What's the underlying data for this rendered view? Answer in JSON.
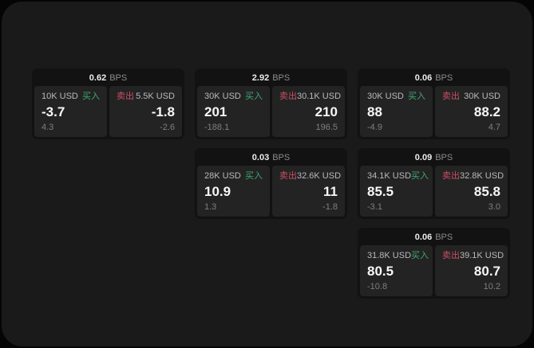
{
  "labels": {
    "bps_unit": "BPS",
    "buy": "买入",
    "sell": "卖出"
  },
  "colors": {
    "background_outer": "#050505",
    "background_page": "#1a1a1b",
    "card_background": "#121212",
    "panel_background": "#232324",
    "buy_green": "#40a86e",
    "sell_red": "#ca4f63",
    "big_value_text": "#f7f7f7",
    "muted_text": "#7f7f82"
  },
  "cards": [
    {
      "bps": "0.62",
      "buy": {
        "amount": "10K USD",
        "big": "-3.7",
        "small": "4.3"
      },
      "sell": {
        "amount": "5.5K USD",
        "big": "-1.8",
        "small": "-2.6"
      }
    },
    {
      "bps": "2.92",
      "buy": {
        "amount": "30K USD",
        "big": "201",
        "small": "-188.1"
      },
      "sell": {
        "amount": "30.1K USD",
        "big": "210",
        "small": "196.5"
      }
    },
    {
      "bps": "0.06",
      "buy": {
        "amount": "30K USD",
        "big": "88",
        "small": "-4.9"
      },
      "sell": {
        "amount": "30K USD",
        "big": "88.2",
        "small": "4.7"
      }
    },
    {
      "bps": "0.03",
      "buy": {
        "amount": "28K USD",
        "big": "10.9",
        "small": "1.3"
      },
      "sell": {
        "amount": "32.6K USD",
        "big": "11",
        "small": "-1.8"
      }
    },
    {
      "bps": "0.09",
      "buy": {
        "amount": "34.1K USD",
        "big": "85.5",
        "small": "-3.1"
      },
      "sell": {
        "amount": "32.8K USD",
        "big": "85.8",
        "small": "3.0"
      }
    },
    {
      "bps": "0.06",
      "buy": {
        "amount": "31.8K USD",
        "big": "80.5",
        "small": "-10.8"
      },
      "sell": {
        "amount": "39.1K USD",
        "big": "80.7",
        "small": "10.2"
      }
    }
  ]
}
